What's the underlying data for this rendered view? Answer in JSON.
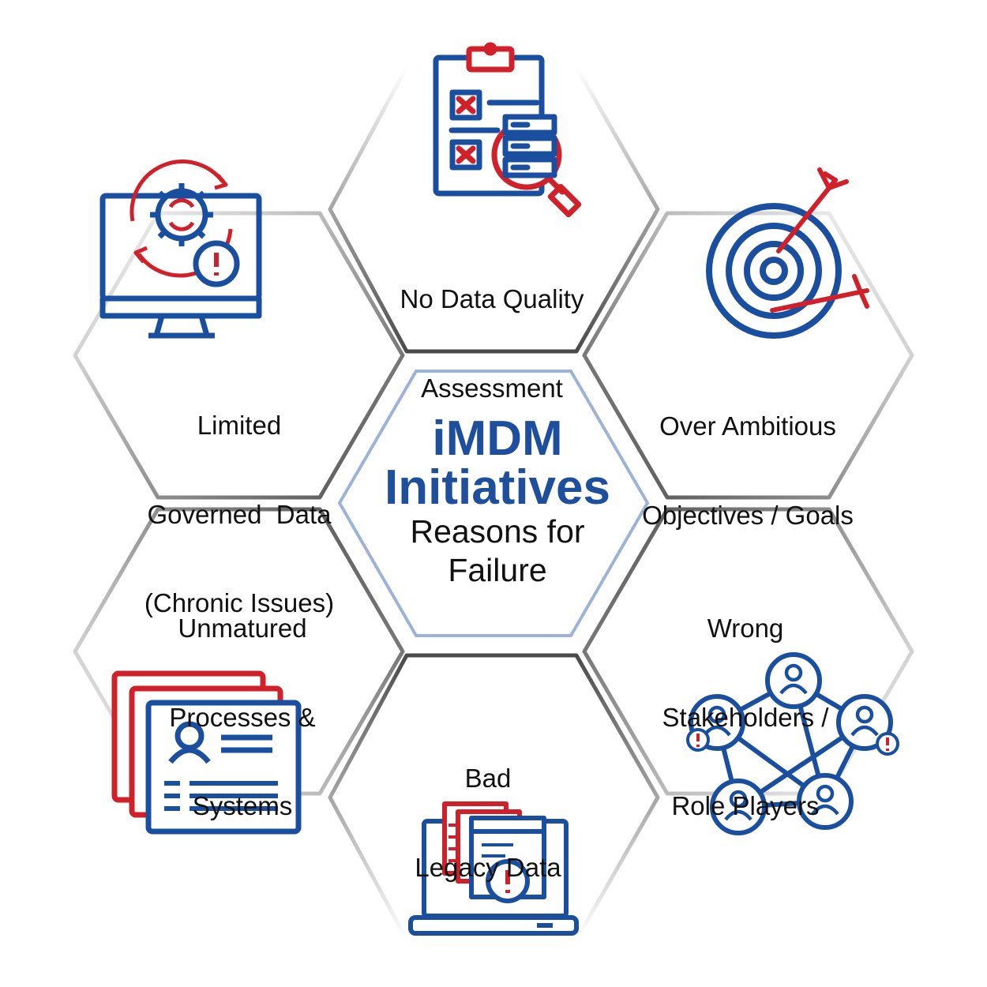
{
  "center": {
    "line1": "iMDM",
    "line2": "Initiatives",
    "line3": "Reasons for",
    "line4": "Failure"
  },
  "segments": {
    "top": {
      "lines": [
        "No Data Quality",
        "Assessment"
      ],
      "icon": "clipboard-database-search-icon"
    },
    "top_right": {
      "lines": [
        "Over Ambitious",
        "Objectives / Goals"
      ],
      "icon": "target-arrows-icon"
    },
    "bottom_right": {
      "lines": [
        "Wrong",
        "Stakeholders /",
        "Role Players"
      ],
      "icon": "people-network-icon"
    },
    "bottom": {
      "lines": [
        "Bad",
        "Legacy Data"
      ],
      "icon": "laptop-documents-warning-icon"
    },
    "bottom_left": {
      "lines": [
        "Unmatured",
        "Processes &",
        "Systems"
      ],
      "icon": "profile-cards-icon"
    },
    "top_left": {
      "lines": [
        "Limited",
        "Governed  Data",
        "(Chronic Issues)"
      ],
      "icon": "monitor-gear-warning-icon"
    }
  },
  "colors": {
    "blue": "#1a4fa0",
    "red": "#d0202a",
    "title_blue": "#1d4f9c",
    "center_border": "#9db3d6"
  }
}
